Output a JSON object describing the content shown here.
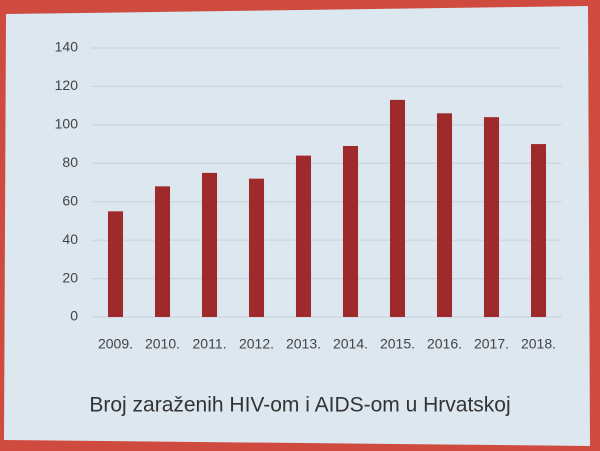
{
  "chart_data": {
    "type": "bar",
    "title": "Broj zaraženih HIV-om i AIDS-om u Hrvatskoj",
    "categories": [
      "2009.",
      "2010.",
      "2011.",
      "2012.",
      "2013.",
      "2014.",
      "2015.",
      "2016.",
      "2017.",
      "2018."
    ],
    "values": [
      55,
      68,
      75,
      72,
      84,
      89,
      113,
      106,
      104,
      90
    ],
    "color": "#9e2a2b",
    "ylim": [
      0,
      140
    ],
    "yticks": [
      0,
      20,
      40,
      60,
      80,
      100,
      120,
      140
    ],
    "grid": true
  }
}
